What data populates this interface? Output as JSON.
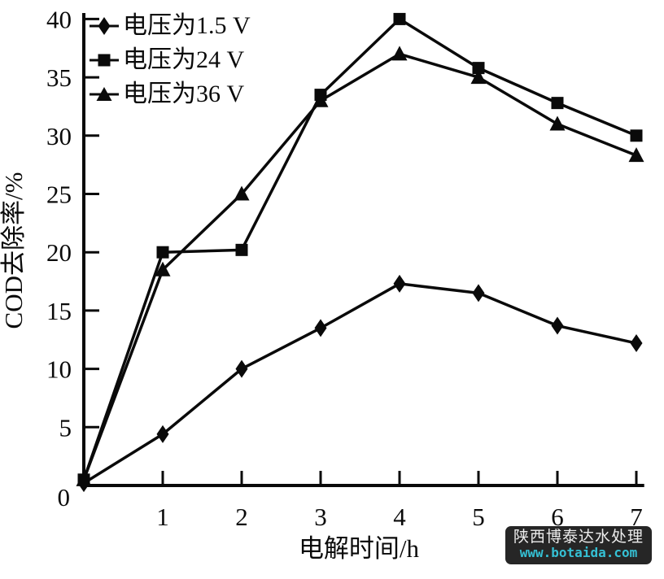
{
  "chart_data": {
    "type": "line",
    "title": "",
    "xlabel": "电解时间/h",
    "ylabel": "COD去除率/%",
    "x": [
      0,
      1,
      2,
      3,
      4,
      5,
      6,
      7
    ],
    "xlim": [
      0,
      7.1
    ],
    "ylim": [
      0,
      40.5
    ],
    "xticks": [
      1,
      2,
      3,
      4,
      5,
      6,
      7
    ],
    "yticks": [
      0,
      5,
      10,
      15,
      20,
      25,
      30,
      35,
      40
    ],
    "origin_label": "0",
    "grid": false,
    "legend_position": "top-left-inside",
    "line_color": "#0a0a0a",
    "axis_color": "#0a0a0a",
    "background_color": "#ffffff",
    "series": [
      {
        "name": "电压为1.5 V",
        "marker": "diamond",
        "values": [
          0.2,
          4.4,
          10.0,
          13.5,
          17.3,
          16.5,
          13.7,
          12.2
        ]
      },
      {
        "name": "电压为24 V",
        "marker": "square",
        "values": [
          0.5,
          20.0,
          20.2,
          33.5,
          40.0,
          35.8,
          32.8,
          30.0
        ]
      },
      {
        "name": "电压为36 V",
        "marker": "triangle",
        "values": [
          0.5,
          18.5,
          25.0,
          33.0,
          37.0,
          35.0,
          31.0,
          28.3
        ]
      }
    ]
  },
  "watermark": {
    "line1": "陕西博泰达水处理",
    "line2": "www.botaida.com",
    "bg_color": "#262626",
    "text_color": "#ededed",
    "url_color": "#35c0d4"
  }
}
